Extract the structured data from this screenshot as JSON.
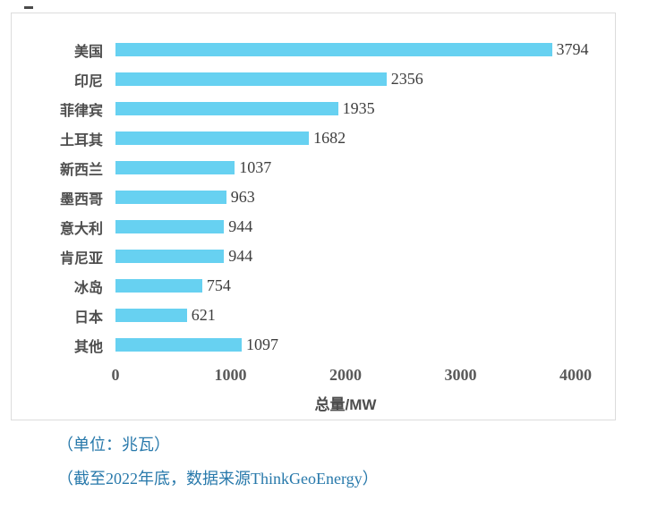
{
  "chart_data": {
    "type": "bar",
    "orientation": "horizontal",
    "title": "",
    "categories": [
      "美国",
      "印尼",
      "菲律宾",
      "土耳其",
      "新西兰",
      "墨西哥",
      "意大利",
      "肯尼亚",
      "冰岛",
      "日本",
      "其他"
    ],
    "values": [
      3794,
      2356,
      1935,
      1682,
      1037,
      963,
      944,
      944,
      754,
      621,
      1097
    ],
    "xlabel": "总量/MW",
    "ylabel": "",
    "xlim": [
      0,
      4000
    ],
    "xticks": [
      0,
      1000,
      2000,
      3000,
      4000
    ],
    "grid": false,
    "legend": false,
    "bar_color": "#67d1f1"
  },
  "captions": {
    "unit": "（单位：兆瓦）",
    "source": "（截至2022年底，数据来源ThinkGeoEnergy）"
  }
}
